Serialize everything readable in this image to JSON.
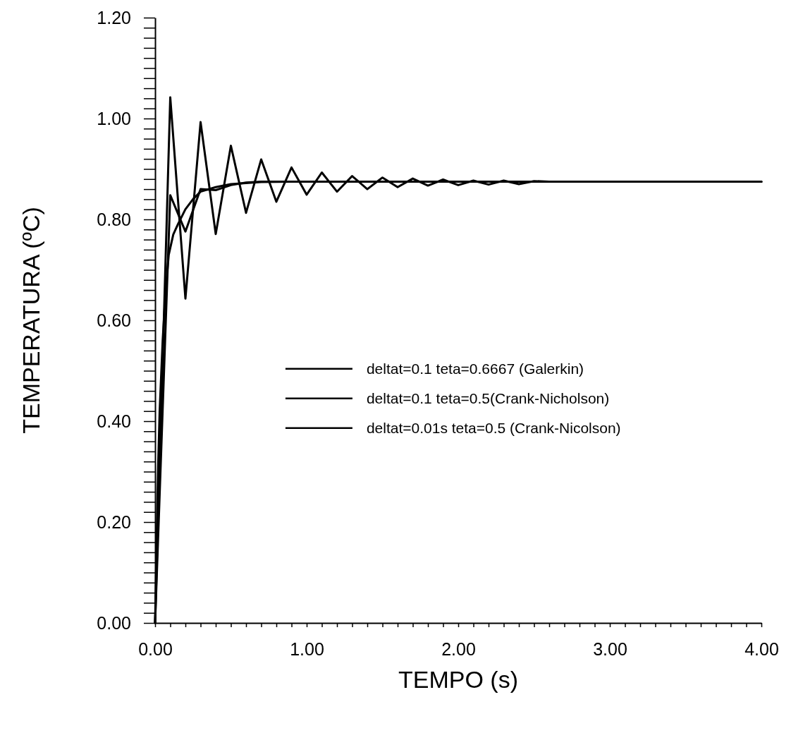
{
  "chart_data": {
    "type": "line",
    "xlabel": "TEMPO (s)",
    "ylabel": "TEMPERATURA (ºC)",
    "xlim": [
      0,
      4
    ],
    "ylim": [
      0,
      1.2
    ],
    "xticks": [
      {
        "value": 0,
        "label": "0.00"
      },
      {
        "value": 0.1,
        "label": null
      },
      {
        "value": 0.2,
        "label": null
      },
      {
        "value": 0.3,
        "label": null
      },
      {
        "value": 0.4,
        "label": null
      },
      {
        "value": 0.5,
        "label": null
      },
      {
        "value": 0.6,
        "label": null
      },
      {
        "value": 0.7,
        "label": null
      },
      {
        "value": 0.8,
        "label": null
      },
      {
        "value": 0.9,
        "label": null
      },
      {
        "value": 1,
        "label": "1.00"
      },
      {
        "value": 1.1,
        "label": null
      },
      {
        "value": 1.2,
        "label": null
      },
      {
        "value": 1.3,
        "label": null
      },
      {
        "value": 1.4,
        "label": null
      },
      {
        "value": 1.5,
        "label": null
      },
      {
        "value": 1.6,
        "label": null
      },
      {
        "value": 1.7,
        "label": null
      },
      {
        "value": 1.8,
        "label": null
      },
      {
        "value": 1.9,
        "label": null
      },
      {
        "value": 2,
        "label": "2.00"
      },
      {
        "value": 2.1,
        "label": null
      },
      {
        "value": 2.2,
        "label": null
      },
      {
        "value": 2.3,
        "label": null
      },
      {
        "value": 2.4,
        "label": null
      },
      {
        "value": 2.5,
        "label": null
      },
      {
        "value": 2.6,
        "label": null
      },
      {
        "value": 2.7,
        "label": null
      },
      {
        "value": 2.8,
        "label": null
      },
      {
        "value": 2.9,
        "label": null
      },
      {
        "value": 3,
        "label": "3.00"
      },
      {
        "value": 3.1,
        "label": null
      },
      {
        "value": 3.2,
        "label": null
      },
      {
        "value": 3.3,
        "label": null
      },
      {
        "value": 3.4,
        "label": null
      },
      {
        "value": 3.5,
        "label": null
      },
      {
        "value": 3.6,
        "label": null
      },
      {
        "value": 3.7,
        "label": null
      },
      {
        "value": 3.8,
        "label": null
      },
      {
        "value": 3.9,
        "label": null
      },
      {
        "value": 4,
        "label": "4.00"
      }
    ],
    "yticks": [
      {
        "value": 0,
        "label": "0.00"
      },
      {
        "value": 0.02,
        "label": null
      },
      {
        "value": 0.04,
        "label": null
      },
      {
        "value": 0.06,
        "label": null
      },
      {
        "value": 0.08,
        "label": null
      },
      {
        "value": 0.1,
        "label": null
      },
      {
        "value": 0.12,
        "label": null
      },
      {
        "value": 0.14,
        "label": null
      },
      {
        "value": 0.16,
        "label": null
      },
      {
        "value": 0.18,
        "label": null
      },
      {
        "value": 0.2,
        "label": "0.20"
      },
      {
        "value": 0.22,
        "label": null
      },
      {
        "value": 0.24,
        "label": null
      },
      {
        "value": 0.26,
        "label": null
      },
      {
        "value": 0.28,
        "label": null
      },
      {
        "value": 0.3,
        "label": null
      },
      {
        "value": 0.32,
        "label": null
      },
      {
        "value": 0.34,
        "label": null
      },
      {
        "value": 0.36,
        "label": null
      },
      {
        "value": 0.38,
        "label": null
      },
      {
        "value": 0.4,
        "label": "0.40"
      },
      {
        "value": 0.42,
        "label": null
      },
      {
        "value": 0.44,
        "label": null
      },
      {
        "value": 0.46,
        "label": null
      },
      {
        "value": 0.48,
        "label": null
      },
      {
        "value": 0.5,
        "label": null
      },
      {
        "value": 0.52,
        "label": null
      },
      {
        "value": 0.54,
        "label": null
      },
      {
        "value": 0.56,
        "label": null
      },
      {
        "value": 0.58,
        "label": null
      },
      {
        "value": 0.6,
        "label": "0.60"
      },
      {
        "value": 0.62,
        "label": null
      },
      {
        "value": 0.64,
        "label": null
      },
      {
        "value": 0.66,
        "label": null
      },
      {
        "value": 0.68,
        "label": null
      },
      {
        "value": 0.7,
        "label": null
      },
      {
        "value": 0.72,
        "label": null
      },
      {
        "value": 0.74,
        "label": null
      },
      {
        "value": 0.76,
        "label": null
      },
      {
        "value": 0.78,
        "label": null
      },
      {
        "value": 0.8,
        "label": "0.80"
      },
      {
        "value": 0.82,
        "label": null
      },
      {
        "value": 0.84,
        "label": null
      },
      {
        "value": 0.86,
        "label": null
      },
      {
        "value": 0.88,
        "label": null
      },
      {
        "value": 0.9,
        "label": null
      },
      {
        "value": 0.92,
        "label": null
      },
      {
        "value": 0.94,
        "label": null
      },
      {
        "value": 0.96,
        "label": null
      },
      {
        "value": 0.98,
        "label": null
      },
      {
        "value": 1,
        "label": "1.00"
      },
      {
        "value": 1.02,
        "label": null
      },
      {
        "value": 1.04,
        "label": null
      },
      {
        "value": 1.06,
        "label": null
      },
      {
        "value": 1.08,
        "label": null
      },
      {
        "value": 1.1,
        "label": null
      },
      {
        "value": 1.12,
        "label": null
      },
      {
        "value": 1.14,
        "label": null
      },
      {
        "value": 1.16,
        "label": null
      },
      {
        "value": 1.18,
        "label": null
      },
      {
        "value": 1.2,
        "label": "1.20"
      }
    ],
    "grid": false,
    "legend": "right",
    "line_style": "solid",
    "marker": "none",
    "series": [
      {
        "name": "deltat=0.1 teta=0.6667 (Galerkin)",
        "color": "#000000",
        "x": [
          0,
          0.1,
          0.2,
          0.3,
          0.4,
          0.5,
          0.6,
          0.7,
          1.0,
          4.0
        ],
        "values": [
          0,
          0.848,
          0.776,
          0.86,
          0.858,
          0.868,
          0.873,
          0.875,
          0.875,
          0.875
        ]
      },
      {
        "name": "deltat=0.1 teta=0.5(Crank-Nicholson)",
        "color": "#000000",
        "x": [
          0,
          0.1,
          0.2,
          0.3,
          0.4,
          0.5,
          0.6,
          0.7,
          0.8,
          0.9,
          1.0,
          1.1,
          1.2,
          1.3,
          1.4,
          1.5,
          1.6,
          1.7,
          1.8,
          1.9,
          2.0,
          2.1,
          2.2,
          2.3,
          2.4,
          2.5,
          2.6,
          4.0
        ],
        "values": [
          0,
          1.042,
          0.643,
          0.993,
          0.771,
          0.946,
          0.813,
          0.919,
          0.835,
          0.903,
          0.849,
          0.893,
          0.855,
          0.886,
          0.86,
          0.883,
          0.864,
          0.881,
          0.867,
          0.879,
          0.868,
          0.877,
          0.869,
          0.877,
          0.87,
          0.876,
          0.875,
          0.875
        ]
      },
      {
        "name": "deltat=0.01s teta=0.5 (Crank-Nicolson)",
        "color": "#000000",
        "x": [
          0,
          0.01,
          0.02,
          0.03,
          0.05,
          0.07,
          0.09,
          0.12,
          0.15,
          0.2,
          0.25,
          0.3,
          0.4,
          0.5,
          0.7,
          1.0,
          4.0
        ],
        "values": [
          0,
          0.16,
          0.31,
          0.42,
          0.56,
          0.66,
          0.73,
          0.77,
          0.79,
          0.82,
          0.84,
          0.855,
          0.864,
          0.87,
          0.874,
          0.875,
          0.875
        ]
      }
    ]
  }
}
